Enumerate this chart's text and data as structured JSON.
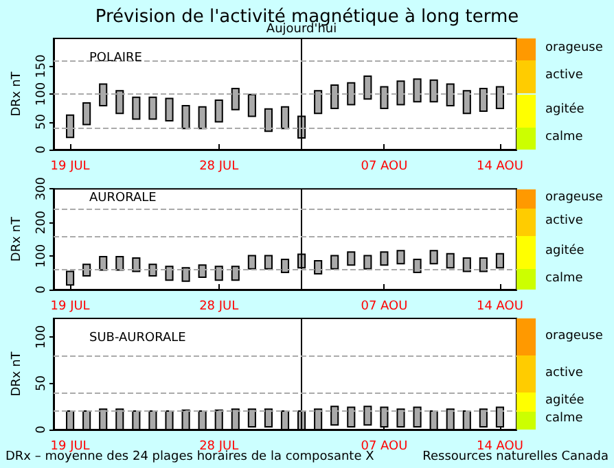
{
  "chart_data": [
    {
      "type": "bar",
      "title": "Prévision de l'activité magnétique à long terme",
      "subtitle": "POLAIRE",
      "ylabel": "DRx nT",
      "color": "#aaaaaa",
      "x": [
        "--07-19",
        "--07-20",
        "--07-21",
        "--07-22",
        "--07-23",
        "--07-24",
        "--07-25",
        "--07-26",
        "--07-27",
        "--07-28",
        "--07-29",
        "--07-30",
        "--07-31",
        "--08-01",
        "--08-02",
        "--08-03",
        "--08-04",
        "--08-05",
        "--08-06",
        "--08-07",
        "--08-08",
        "--08-09",
        "--08-10",
        "--08-11",
        "--08-12",
        "--08-13",
        "--08-14"
      ],
      "xlim": [
        "--07-18",
        "--08-15"
      ],
      "xticks": [
        {
          "value": "--07-19",
          "label": "19 JUL"
        },
        {
          "value": "--07-28",
          "label": "28 JUL"
        },
        {
          "value": "--08-07",
          "label": "07 AOU"
        },
        {
          "value": "--08-14",
          "label": "14 AOU"
        }
      ],
      "ylim": [
        0,
        200
      ],
      "yticks": [
        0,
        50,
        100,
        150
      ],
      "base": [
        22,
        45,
        79,
        65,
        55,
        55,
        52,
        38,
        38,
        50,
        72,
        60,
        33,
        38,
        21,
        65,
        74,
        81,
        91,
        74,
        81,
        86,
        86,
        79,
        65,
        69,
        74
      ],
      "values": [
        40,
        39,
        39,
        41,
        39,
        39,
        40,
        41,
        39,
        39,
        38,
        39,
        40,
        39,
        39,
        41,
        42,
        39,
        41,
        39,
        42,
        41,
        39,
        39,
        41,
        41,
        39
      ],
      "ref_lines": [
        {
          "axis": "x",
          "value": "--08-02",
          "label": "Aujourd'hui",
          "color": "#000000",
          "line_style": "solid"
        },
        {
          "axis": "y",
          "value": 40,
          "label": null,
          "color": "#aaaaaa",
          "line_style": "dashed"
        },
        {
          "axis": "y",
          "value": 100,
          "label": null,
          "color": "#aaaaaa",
          "line_style": "dashed"
        },
        {
          "axis": "y",
          "value": 160,
          "label": null,
          "color": "#aaaaaa",
          "line_style": "dashed"
        }
      ],
      "annotations": [
        "calme",
        "agitée",
        "active",
        "orageuse"
      ]
    },
    {
      "type": "bar",
      "subtitle": "AURORALE",
      "ylabel": "DRx nT",
      "color": "#aaaaaa",
      "x": [
        "--07-19",
        "--07-20",
        "--07-21",
        "--07-22",
        "--07-23",
        "--07-24",
        "--07-25",
        "--07-26",
        "--07-27",
        "--07-28",
        "--07-29",
        "--07-30",
        "--07-31",
        "--08-01",
        "--08-02",
        "--08-03",
        "--08-04",
        "--08-05",
        "--08-06",
        "--08-07",
        "--08-08",
        "--08-09",
        "--08-10",
        "--08-11",
        "--08-12",
        "--08-13",
        "--08-14"
      ],
      "xlim": [
        "--07-18",
        "--08-15"
      ],
      "xticks": [
        {
          "value": "--07-19",
          "label": "19 JUL"
        },
        {
          "value": "--07-28",
          "label": "28 JUL"
        },
        {
          "value": "--08-07",
          "label": "07 AOU"
        },
        {
          "value": "--08-14",
          "label": "14 AOU"
        }
      ],
      "ylim": [
        0,
        300
      ],
      "yticks": [
        0,
        100,
        200,
        300
      ],
      "base": [
        14,
        41,
        58,
        58,
        54,
        41,
        28,
        25,
        37,
        28,
        28,
        62,
        62,
        51,
        65,
        47,
        62,
        73,
        62,
        73,
        77,
        51,
        77,
        65,
        54,
        54,
        65
      ],
      "values": [
        40,
        34,
        40,
        40,
        40,
        34,
        41,
        40,
        36,
        41,
        41,
        39,
        39,
        39,
        40,
        39,
        39,
        39,
        39,
        39,
        39,
        39,
        39,
        42,
        40,
        40,
        42
      ],
      "ref_lines": [
        {
          "axis": "x",
          "value": "--08-02",
          "label": null,
          "color": "#000000",
          "line_style": "solid"
        },
        {
          "axis": "y",
          "value": 60,
          "label": null,
          "color": "#aaaaaa",
          "line_style": "dashed"
        },
        {
          "axis": "y",
          "value": 160,
          "label": null,
          "color": "#aaaaaa",
          "line_style": "dashed"
        },
        {
          "axis": "y",
          "value": 240,
          "label": null,
          "color": "#aaaaaa",
          "line_style": "dashed"
        }
      ],
      "annotations": [
        "calme",
        "agitée",
        "active",
        "orageuse"
      ]
    },
    {
      "type": "bar",
      "subtitle": "SUB-AURORALE",
      "ylabel": "DRx nT",
      "color": "#aaaaaa",
      "x": [
        "--07-19",
        "--07-20",
        "--07-21",
        "--07-22",
        "--07-23",
        "--07-24",
        "--07-25",
        "--07-26",
        "--07-27",
        "--07-28",
        "--07-29",
        "--07-30",
        "--07-31",
        "--08-01",
        "--08-02",
        "--08-03",
        "--08-04",
        "--08-05",
        "--08-06",
        "--08-07",
        "--08-08",
        "--08-09",
        "--08-10",
        "--08-11",
        "--08-12",
        "--08-13",
        "--08-14"
      ],
      "xlim": [
        "--07-18",
        "--08-15"
      ],
      "xticks": [
        {
          "value": "--07-19",
          "label": "19 JUL"
        },
        {
          "value": "--07-28",
          "label": "28 JUL"
        },
        {
          "value": "--08-07",
          "label": "07 AOU"
        },
        {
          "value": "--08-14",
          "label": "14 AOU"
        }
      ],
      "ylim": [
        0,
        120
      ],
      "yticks": [
        0,
        50,
        100
      ],
      "base": [
        0,
        0,
        0,
        0,
        0,
        0,
        0,
        0,
        0,
        0,
        0,
        3,
        3,
        0,
        0,
        0,
        5,
        3,
        5,
        3,
        3,
        3,
        0,
        0,
        0,
        3,
        3
      ],
      "values": [
        20,
        20,
        22,
        22,
        20,
        20,
        20,
        21,
        20,
        21,
        22,
        19,
        19,
        20,
        20,
        22,
        20,
        21,
        20,
        21,
        19,
        21,
        20,
        22,
        20,
        19,
        21
      ],
      "ref_lines": [
        {
          "axis": "x",
          "value": "--08-02",
          "label": null,
          "color": "#000000",
          "line_style": "solid"
        },
        {
          "axis": "y",
          "value": 20,
          "label": null,
          "color": "#aaaaaa",
          "line_style": "dashed"
        },
        {
          "axis": "y",
          "value": 40,
          "label": null,
          "color": "#aaaaaa",
          "line_style": "dashed"
        },
        {
          "axis": "y",
          "value": 80,
          "label": null,
          "color": "#aaaaaa",
          "line_style": "dashed"
        }
      ],
      "annotations": [
        "calme",
        "agitée",
        "active",
        "orageuse",
        "DRx – moyenne des 24 plages horaires de la composante X",
        "Ressources naturelles Canada"
      ]
    }
  ]
}
